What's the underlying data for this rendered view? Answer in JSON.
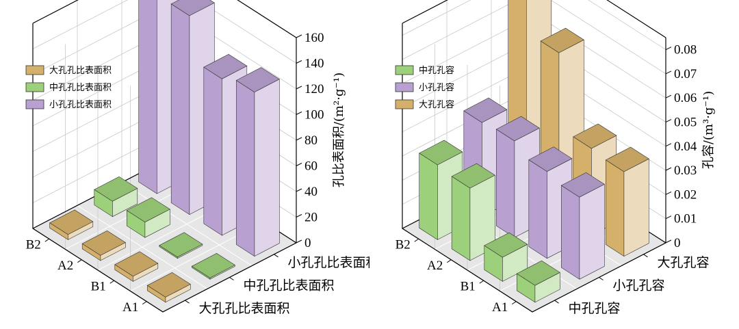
{
  "colors": {
    "large_pore": "#d4b06a",
    "medium_pore": "#9cd07a",
    "small_pore": "#b8a0d0"
  },
  "chart_data": [
    {
      "type": "bar3d",
      "ylabel": "孔比表面积/(m²·g⁻¹)",
      "ylim": [
        0,
        160
      ],
      "yticks": [
        "0",
        "20",
        "40",
        "60",
        "80",
        "100",
        "120",
        "140",
        "160"
      ],
      "rows": [
        "A1",
        "B1",
        "A2",
        "B2"
      ],
      "series": [
        {
          "name": "大孔孔比表面积",
          "color_key": "large_pore",
          "values": [
            4,
            4,
            4,
            4
          ]
        },
        {
          "name": "中孔孔比表面积",
          "color_key": "medium_pore",
          "values": [
            1,
            1,
            12,
            12
          ]
        },
        {
          "name": "小孔孔比表面积",
          "color_key": "small_pore",
          "values": [
            128,
            122,
            155,
            164
          ]
        }
      ],
      "legend": [
        {
          "label": "大孔孔比表面积",
          "color_key": "large_pore"
        },
        {
          "label": "中孔孔比表面积",
          "color_key": "medium_pore"
        },
        {
          "label": "小孔孔比表面积",
          "color_key": "small_pore"
        }
      ],
      "legend_position": "top-left"
    },
    {
      "type": "bar3d",
      "ylabel": "孔容/(m³·g⁻¹)",
      "ylim": [
        0,
        0.085
      ],
      "yticks": [
        "0",
        "0.01",
        "0.02",
        "0.03",
        "0.04",
        "0.05",
        "0.06",
        "0.07",
        "0.08"
      ],
      "rows": [
        "A1",
        "B1",
        "A2",
        "B2"
      ],
      "series": [
        {
          "name": "中孔孔容",
          "color_key": "medium_pore",
          "values": [
            0.007,
            0.01,
            0.03,
            0.031
          ]
        },
        {
          "name": "小孔孔容",
          "color_key": "small_pore",
          "values": [
            0.034,
            0.036,
            0.04,
            0.039
          ]
        },
        {
          "name": "大孔孔容",
          "color_key": "large_pore",
          "values": [
            0.035,
            0.036,
            0.067,
            0.083
          ]
        }
      ],
      "legend": [
        {
          "label": "中孔孔容",
          "color_key": "medium_pore"
        },
        {
          "label": "小孔孔容",
          "color_key": "small_pore"
        },
        {
          "label": "大孔孔容",
          "color_key": "large_pore"
        }
      ],
      "legend_position": "top-left"
    }
  ]
}
